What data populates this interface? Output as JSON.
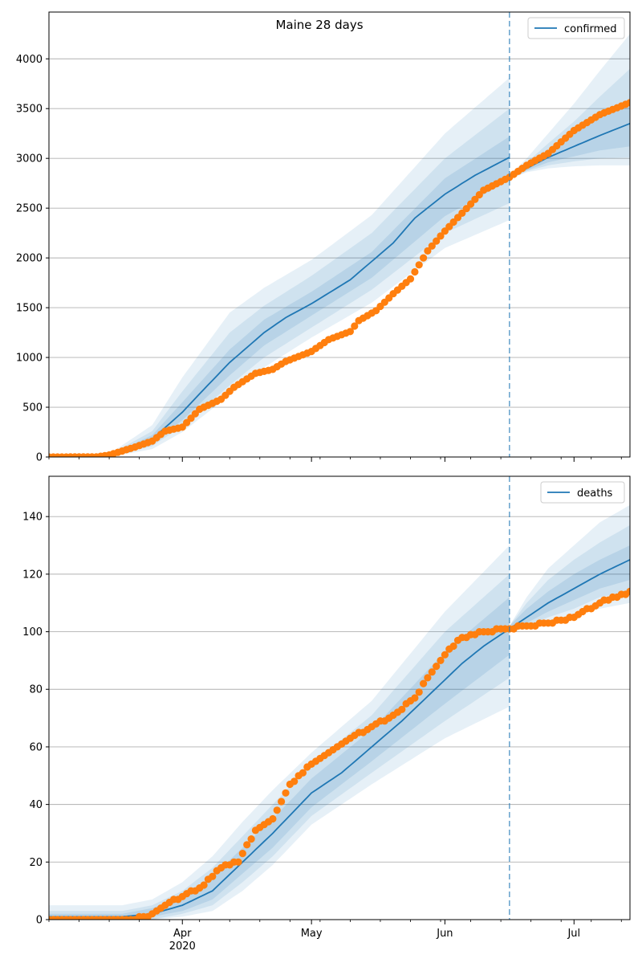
{
  "figure": {
    "title": "Maine 28 days"
  },
  "chart_data": [
    {
      "type": "line",
      "title": "Maine 28 days",
      "legend": {
        "label": "confirmed",
        "placement": "top-right"
      },
      "x_domain": [
        "2020-03-01",
        "2020-07-14"
      ],
      "forecast_start": "2020-06-16",
      "ylim": [
        0,
        4470
      ],
      "yticks": [
        0,
        500,
        1000,
        1500,
        2000,
        2500,
        3000,
        3500,
        4000
      ],
      "grid": "horizontal",
      "model": {
        "dates": [
          "2020-03-01",
          "2020-03-10",
          "2020-03-15",
          "2020-03-20",
          "2020-03-25",
          "2020-04-01",
          "2020-04-06",
          "2020-04-12",
          "2020-04-20",
          "2020-04-25",
          "2020-05-01",
          "2020-05-10",
          "2020-05-20",
          "2020-05-25",
          "2020-06-01",
          "2020-06-08",
          "2020-06-16"
        ],
        "values": [
          0,
          0,
          10,
          60,
          180,
          450,
          680,
          950,
          1250,
          1400,
          1540,
          1780,
          2150,
          2400,
          2640,
          2830,
          3010
        ]
      },
      "bands": [
        {
          "level": "outer",
          "dates": [
            "2020-03-15",
            "2020-03-25",
            "2020-04-01",
            "2020-04-12",
            "2020-04-20",
            "2020-05-01",
            "2020-05-15",
            "2020-06-01",
            "2020-06-16"
          ],
          "lower": [
            0,
            80,
            250,
            620,
            900,
            1200,
            1550,
            2100,
            2380
          ],
          "upper": [
            30,
            320,
            800,
            1450,
            1700,
            1980,
            2430,
            3250,
            3810
          ]
        },
        {
          "level": "middle",
          "dates": [
            "2020-03-15",
            "2020-03-25",
            "2020-04-01",
            "2020-04-12",
            "2020-04-20",
            "2020-05-01",
            "2020-05-15",
            "2020-06-01",
            "2020-06-16"
          ],
          "lower": [
            3,
            110,
            310,
            720,
            1000,
            1300,
            1680,
            2250,
            2550
          ],
          "upper": [
            22,
            260,
            660,
            1250,
            1520,
            1820,
            2250,
            3000,
            3500
          ]
        },
        {
          "level": "inner",
          "dates": [
            "2020-03-15",
            "2020-03-25",
            "2020-04-01",
            "2020-04-12",
            "2020-04-20",
            "2020-05-01",
            "2020-05-15",
            "2020-06-01",
            "2020-06-16"
          ],
          "lower": [
            6,
            140,
            370,
            820,
            1120,
            1420,
            1800,
            2420,
            2780
          ],
          "upper": [
            15,
            220,
            550,
            1080,
            1380,
            1660,
            2060,
            2800,
            3220
          ]
        }
      ],
      "forecast": {
        "dates": [
          "2020-06-16",
          "2020-06-20",
          "2020-06-25",
          "2020-07-01",
          "2020-07-07",
          "2020-07-14"
        ],
        "values": [
          2810,
          2900,
          3010,
          3120,
          3230,
          3350
        ]
      },
      "forecast_bands": [
        {
          "level": "outer",
          "dates": [
            "2020-06-16",
            "2020-06-20",
            "2020-06-25",
            "2020-07-01",
            "2020-07-07",
            "2020-07-14"
          ],
          "lower": [
            2790,
            2860,
            2900,
            2920,
            2930,
            2930
          ],
          "upper": [
            2830,
            3000,
            3250,
            3550,
            3880,
            4250
          ]
        },
        {
          "level": "middle",
          "dates": [
            "2020-06-16",
            "2020-06-20",
            "2020-06-25",
            "2020-07-01",
            "2020-07-07",
            "2020-07-14"
          ],
          "lower": [
            2795,
            2870,
            2930,
            2970,
            3000,
            3010
          ],
          "upper": [
            2825,
            2960,
            3150,
            3370,
            3620,
            3900
          ]
        },
        {
          "level": "inner",
          "dates": [
            "2020-06-16",
            "2020-06-20",
            "2020-06-25",
            "2020-07-01",
            "2020-07-07",
            "2020-07-14"
          ],
          "lower": [
            2800,
            2880,
            2960,
            3020,
            3080,
            3120
          ],
          "upper": [
            2820,
            2930,
            3080,
            3250,
            3420,
            3600
          ]
        }
      ],
      "observed": {
        "dates": [
          "2020-03-01",
          "2020-03-12",
          "2020-03-15",
          "2020-03-18",
          "2020-03-21",
          "2020-03-25",
          "2020-03-28",
          "2020-04-01",
          "2020-04-05",
          "2020-04-10",
          "2020-04-13",
          "2020-04-18",
          "2020-04-22",
          "2020-04-25",
          "2020-04-28",
          "2020-05-01",
          "2020-05-05",
          "2020-05-10",
          "2020-05-12",
          "2020-05-16",
          "2020-05-20",
          "2020-05-24",
          "2020-05-28",
          "2020-06-01",
          "2020-06-05",
          "2020-06-10",
          "2020-06-16",
          "2020-06-20",
          "2020-06-25",
          "2020-07-01",
          "2020-07-07",
          "2020-07-14"
        ],
        "values": [
          0,
          1,
          20,
          60,
          100,
          160,
          260,
          300,
          480,
          580,
          700,
          840,
          880,
          960,
          1010,
          1060,
          1180,
          1260,
          1370,
          1470,
          1640,
          1790,
          2070,
          2270,
          2450,
          2680,
          2810,
          2930,
          3050,
          3280,
          3440,
          3560
        ]
      }
    },
    {
      "type": "line",
      "legend": {
        "label": "deaths",
        "placement": "top-right"
      },
      "x_domain": [
        "2020-03-01",
        "2020-07-14"
      ],
      "forecast_start": "2020-06-16",
      "ylim": [
        0,
        154
      ],
      "yticks": [
        0,
        20,
        40,
        60,
        80,
        100,
        120,
        140
      ],
      "xticks": [
        {
          "date": "2020-04-01",
          "label": "Apr",
          "sublabel": "2020"
        },
        {
          "date": "2020-05-01",
          "label": "May"
        },
        {
          "date": "2020-06-01",
          "label": "Jun"
        },
        {
          "date": "2020-07-01",
          "label": "Jul"
        }
      ],
      "grid": "horizontal",
      "model": {
        "dates": [
          "2020-03-01",
          "2020-03-18",
          "2020-03-25",
          "2020-04-01",
          "2020-04-08",
          "2020-04-15",
          "2020-04-22",
          "2020-05-01",
          "2020-05-08",
          "2020-05-15",
          "2020-05-22",
          "2020-05-29",
          "2020-06-05",
          "2020-06-10",
          "2020-06-16"
        ],
        "values": [
          1,
          1,
          2,
          5,
          10,
          20,
          30,
          44,
          51,
          60,
          69,
          79,
          89,
          95,
          101
        ]
      },
      "bands": [
        {
          "level": "outer",
          "dates": [
            "2020-03-01",
            "2020-03-18",
            "2020-03-25",
            "2020-04-01",
            "2020-04-08",
            "2020-04-15",
            "2020-04-22",
            "2020-05-01",
            "2020-05-15",
            "2020-06-01",
            "2020-06-16"
          ],
          "lower": [
            0,
            0,
            0,
            1,
            3,
            10,
            19,
            33,
            47,
            63,
            74
          ],
          "upper": [
            5,
            5,
            7,
            13,
            22,
            34,
            45,
            58,
            76,
            107,
            130
          ]
        },
        {
          "level": "middle",
          "dates": [
            "2020-03-01",
            "2020-03-18",
            "2020-03-25",
            "2020-04-01",
            "2020-04-08",
            "2020-04-15",
            "2020-04-22",
            "2020-05-01",
            "2020-05-15",
            "2020-06-01",
            "2020-06-16"
          ],
          "lower": [
            0,
            0,
            0,
            2,
            5,
            13,
            22,
            36,
            51,
            69,
            84
          ],
          "upper": [
            3,
            3,
            5,
            10,
            18,
            29,
            40,
            54,
            71,
            100,
            120
          ]
        },
        {
          "level": "inner",
          "dates": [
            "2020-03-01",
            "2020-03-18",
            "2020-03-25",
            "2020-04-01",
            "2020-04-08",
            "2020-04-15",
            "2020-04-22",
            "2020-05-01",
            "2020-05-15",
            "2020-06-01",
            "2020-06-16"
          ],
          "lower": [
            0,
            0,
            1,
            3,
            7,
            16,
            25,
            39,
            55,
            75,
            92
          ],
          "upper": [
            2,
            2,
            4,
            8,
            15,
            25,
            35,
            49,
            66,
            93,
            112
          ]
        }
      ],
      "forecast": {
        "dates": [
          "2020-06-16",
          "2020-06-20",
          "2020-06-25",
          "2020-07-01",
          "2020-07-07",
          "2020-07-14"
        ],
        "values": [
          101,
          105,
          110,
          115,
          120,
          125
        ]
      },
      "forecast_bands": [
        {
          "level": "outer",
          "dates": [
            "2020-06-16",
            "2020-06-20",
            "2020-06-25",
            "2020-07-01",
            "2020-07-07",
            "2020-07-14"
          ],
          "lower": [
            100,
            101,
            103,
            106,
            108,
            110
          ],
          "upper": [
            102,
            112,
            122,
            130,
            138,
            144
          ]
        },
        {
          "level": "middle",
          "dates": [
            "2020-06-16",
            "2020-06-20",
            "2020-06-25",
            "2020-07-01",
            "2020-07-07",
            "2020-07-14"
          ],
          "lower": [
            100,
            102,
            105,
            108,
            112,
            114
          ],
          "upper": [
            102,
            110,
            118,
            125,
            131,
            137
          ]
        },
        {
          "level": "inner",
          "dates": [
            "2020-06-16",
            "2020-06-20",
            "2020-06-25",
            "2020-07-01",
            "2020-07-07",
            "2020-07-14"
          ],
          "lower": [
            100,
            103,
            107,
            111,
            115,
            118
          ],
          "upper": [
            102,
            108,
            114,
            120,
            125,
            130
          ]
        }
      ],
      "observed": {
        "dates": [
          "2020-03-01",
          "2020-03-20",
          "2020-03-24",
          "2020-03-28",
          "2020-04-01",
          "2020-04-05",
          "2020-04-10",
          "2020-04-14",
          "2020-04-18",
          "2020-04-22",
          "2020-04-26",
          "2020-05-01",
          "2020-05-05",
          "2020-05-10",
          "2020-05-15",
          "2020-05-20",
          "2020-05-25",
          "2020-05-28",
          "2020-06-01",
          "2020-06-05",
          "2020-06-10",
          "2020-06-16",
          "2020-06-20",
          "2020-06-25",
          "2020-07-01",
          "2020-07-07",
          "2020-07-14"
        ],
        "values": [
          0,
          0,
          1,
          5,
          8,
          11,
          18,
          20,
          31,
          35,
          47,
          54,
          58,
          63,
          67,
          71,
          77,
          84,
          92,
          98,
          100,
          101,
          102,
          103,
          105,
          110,
          114
        ]
      }
    }
  ],
  "colors": {
    "line": "#1f77b4",
    "points": "#ff7f0e",
    "band": "#1f77b4",
    "vline": "#1f77b4",
    "grid": "#b0b0b0",
    "axis": "#000000"
  }
}
